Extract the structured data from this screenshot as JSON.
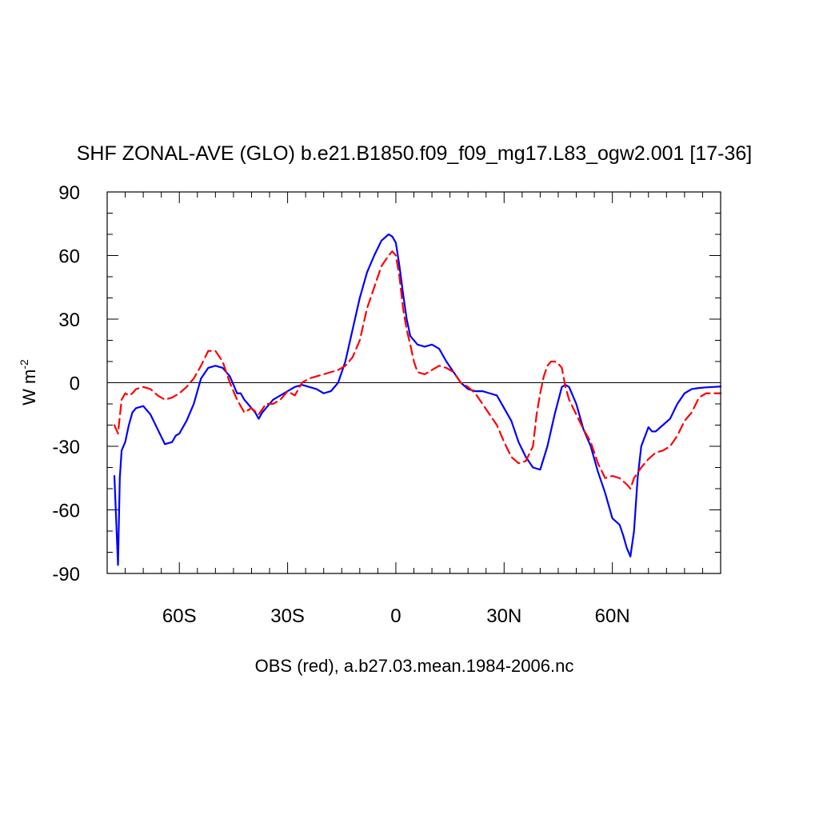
{
  "chart_data": {
    "type": "line",
    "title": "SHF ZONAL-AVE (GLO) b.e21.B1850.f09_f09_mg17.L83_ogw2.001 [17-36]",
    "xlabel": "OBS (red), a.b27.03.mean.1984-2006.nc",
    "ylabel": "W m",
    "ylabel_superscript": "-2",
    "xlim": [
      -80,
      90
    ],
    "ylim": [
      -90,
      90
    ],
    "grid": false,
    "zero_line": true,
    "xticks": [
      {
        "value": -60,
        "label": "60S"
      },
      {
        "value": -30,
        "label": "30S"
      },
      {
        "value": 0,
        "label": "0"
      },
      {
        "value": 30,
        "label": "30N"
      },
      {
        "value": 60,
        "label": "60N"
      }
    ],
    "yticks": [
      {
        "value": 90,
        "label": "90"
      },
      {
        "value": 60,
        "label": "60"
      },
      {
        "value": 30,
        "label": "30"
      },
      {
        "value": 0,
        "label": "0"
      },
      {
        "value": -30,
        "label": "-30"
      },
      {
        "value": -60,
        "label": "-60"
      },
      {
        "value": -90,
        "label": "-90"
      }
    ],
    "series": [
      {
        "name": "b.e21.B1850.f09_f09_mg17.L83_ogw2.001",
        "color": "#0000ff",
        "dash": "solid",
        "x": [
          -78,
          -77,
          -76.5,
          -76,
          -75,
          -74,
          -73,
          -72,
          -70,
          -68,
          -66,
          -64,
          -62,
          -61,
          -60,
          -58,
          -56,
          -54,
          -52,
          -50,
          -48,
          -46,
          -44,
          -43,
          -42,
          -41,
          -40,
          -39,
          -38,
          -37,
          -36,
          -35,
          -34,
          -32,
          -30,
          -28,
          -26,
          -24,
          -22,
          -20,
          -18,
          -16,
          -14,
          -12,
          -10,
          -8,
          -6,
          -4,
          -2,
          -1,
          0,
          1,
          2,
          3,
          4,
          6,
          8,
          10,
          12,
          14,
          16,
          18,
          20,
          22,
          24,
          26,
          28,
          30,
          32,
          34,
          36,
          38,
          40,
          42,
          44,
          46,
          47,
          48,
          50,
          52,
          54,
          56,
          58,
          60,
          62,
          63,
          64,
          65,
          66,
          67,
          68,
          70,
          71,
          72,
          74,
          76,
          78,
          80,
          82,
          84,
          86,
          88,
          90
        ],
        "values": [
          -44,
          -86,
          -45,
          -32,
          -28,
          -20,
          -14,
          -12,
          -11,
          -15,
          -22,
          -29,
          -28,
          -25,
          -24,
          -18,
          -10,
          2,
          7,
          8,
          7,
          3,
          -5,
          -5,
          -8,
          -10,
          -12,
          -14,
          -17,
          -14,
          -12,
          -10,
          -8,
          -6,
          -4,
          -2,
          -1,
          -2,
          -3,
          -5,
          -4,
          0,
          10,
          25,
          40,
          52,
          60,
          67,
          70,
          69,
          66,
          55,
          42,
          30,
          22,
          18,
          17,
          18,
          16,
          10,
          5,
          0,
          -3,
          -4,
          -4,
          -5,
          -6,
          -12,
          -18,
          -28,
          -35,
          -40,
          -41,
          -30,
          -15,
          -2,
          -1,
          -2,
          -10,
          -22,
          -30,
          -42,
          -52,
          -64,
          -67,
          -72,
          -78,
          -82,
          -70,
          -45,
          -30,
          -21,
          -23,
          -23,
          -20,
          -17,
          -10,
          -5,
          -3,
          -2.5,
          -2.2,
          -2,
          -1.8
        ]
      },
      {
        "name": "OBS",
        "color": "#ff0000",
        "dash": "dashed",
        "x": [
          -78,
          -77,
          -76,
          -75,
          -74,
          -73,
          -72,
          -70,
          -68,
          -66,
          -64,
          -62,
          -60,
          -58,
          -56,
          -54,
          -52,
          -50,
          -48,
          -46,
          -44,
          -42,
          -40,
          -38,
          -36,
          -34,
          -32,
          -30,
          -28,
          -26,
          -24,
          -22,
          -20,
          -18,
          -16,
          -14,
          -12,
          -10,
          -8,
          -6,
          -4,
          -2,
          -1,
          0,
          1,
          2,
          3,
          4,
          5,
          6,
          8,
          10,
          12,
          14,
          16,
          18,
          20,
          22,
          24,
          26,
          28,
          30,
          32,
          34,
          36,
          38,
          39,
          40,
          41,
          42,
          43,
          44,
          45,
          46,
          47,
          48,
          50,
          52,
          54,
          56,
          58,
          60,
          62,
          64,
          65,
          66,
          68,
          70,
          72,
          74,
          76,
          78,
          80,
          82,
          84,
          86,
          88,
          90
        ],
        "values": [
          -20,
          -24,
          -8,
          -5,
          -6,
          -5,
          -3,
          -2,
          -3,
          -6,
          -8,
          -7,
          -5,
          -2,
          2,
          8,
          15,
          15,
          10,
          0,
          -8,
          -14,
          -12,
          -15,
          -10,
          -10,
          -8,
          -4,
          -6,
          0,
          2,
          3,
          4,
          5,
          6,
          8,
          12,
          20,
          35,
          45,
          55,
          60,
          62,
          60,
          50,
          35,
          25,
          18,
          10,
          5,
          4,
          6,
          8,
          7,
          5,
          0,
          -2,
          -5,
          -10,
          -15,
          -20,
          -28,
          -35,
          -38,
          -37,
          -30,
          -15,
          -5,
          3,
          8,
          10,
          10,
          9,
          7,
          -2,
          -8,
          -15,
          -22,
          -28,
          -38,
          -45,
          -44,
          -45,
          -48,
          -50,
          -45,
          -40,
          -36,
          -33,
          -32,
          -30,
          -25,
          -18,
          -14,
          -7,
          -5,
          -5,
          -5
        ]
      }
    ]
  }
}
